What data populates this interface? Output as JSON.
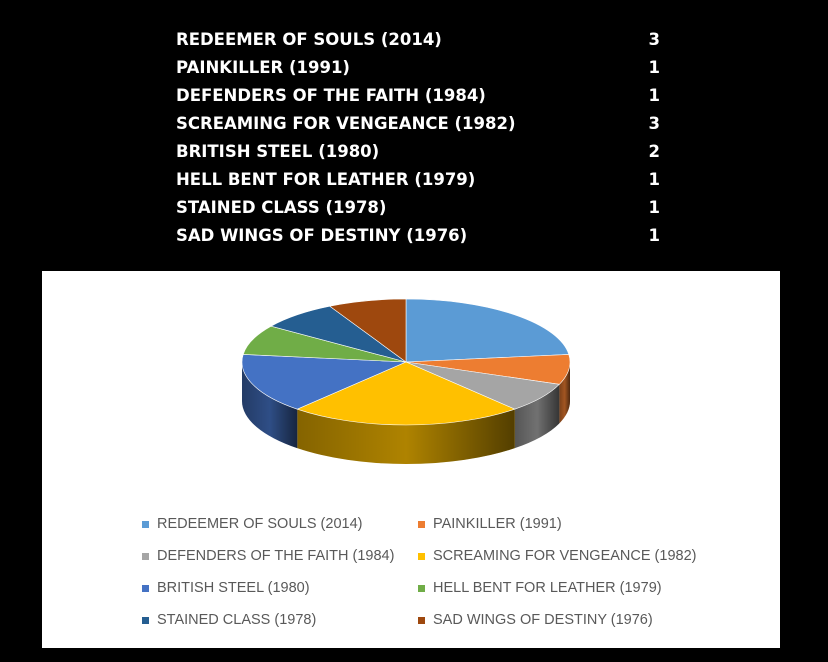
{
  "table": {
    "rows": [
      {
        "album": "REDEEMER OF SOULS (2014)",
        "count": "3"
      },
      {
        "album": "PAINKILLER (1991)",
        "count": "1"
      },
      {
        "album": "DEFENDERS OF THE FAITH (1984)",
        "count": "1"
      },
      {
        "album": "SCREAMING FOR VENGEANCE (1982)",
        "count": "3"
      },
      {
        "album": "BRITISH STEEL (1980)",
        "count": "2"
      },
      {
        "album": "HELL BENT FOR LEATHER (1979)",
        "count": "1"
      },
      {
        "album": "STAINED CLASS (1978)",
        "count": "1"
      },
      {
        "album": "SAD WINGS OF DESTINY (1976)",
        "count": "1"
      }
    ]
  },
  "chart_data": {
    "type": "pie",
    "style": "3d",
    "title": "",
    "legend_position": "bottom",
    "slices": [
      {
        "label": "REDEEMER OF SOULS (2014)",
        "value": 3,
        "color": "#5B9BD5"
      },
      {
        "label": "PAINKILLER (1991)",
        "value": 1,
        "color": "#ED7D31"
      },
      {
        "label": "DEFENDERS OF THE FAITH (1984)",
        "value": 1,
        "color": "#A5A5A5"
      },
      {
        "label": "SCREAMING FOR VENGEANCE (1982)",
        "value": 3,
        "color": "#FFC000"
      },
      {
        "label": "BRITISH STEEL (1980)",
        "value": 2,
        "color": "#4472C4"
      },
      {
        "label": "HELL BENT FOR LEATHER (1979)",
        "value": 1,
        "color": "#70AD47"
      },
      {
        "label": "STAINED CLASS (1978)",
        "value": 1,
        "color": "#255E91"
      },
      {
        "label": "SAD WINGS OF DESTINY (1976)",
        "value": 1,
        "color": "#9E480E"
      }
    ]
  }
}
